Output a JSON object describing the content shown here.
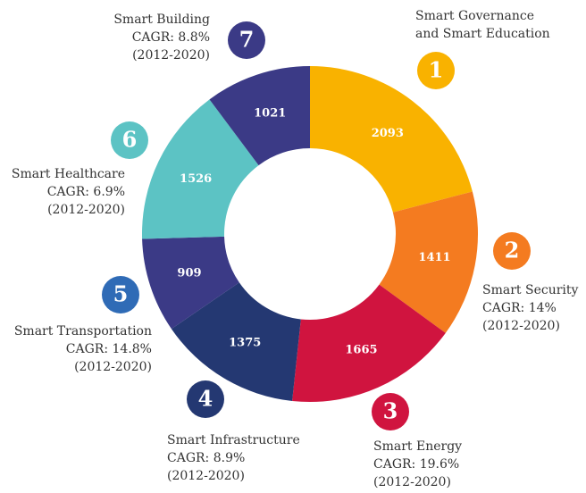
{
  "chart_data": {
    "type": "donut",
    "values": [
      2093,
      1411,
      1665,
      1375,
      909,
      1526,
      1021
    ],
    "colors": [
      "#f9b200",
      "#f47b20",
      "#d0143f",
      "#243872",
      "#3b3a86",
      "#5cc3c4",
      "#3b3a86"
    ],
    "badge_colors": [
      "#f9b200",
      "#f47b20",
      "#d0143f",
      "#243872",
      "#2f6bb6",
      "#5cc3c4",
      "#3b3a86"
    ],
    "labels": [
      {
        "badge": 1,
        "lines": [
          "Smart Governance",
          "and Smart Education"
        ]
      },
      {
        "badge": 2,
        "lines": [
          "Smart Security",
          "CAGR: 14%",
          "(2012-2020)"
        ]
      },
      {
        "badge": 3,
        "lines": [
          "Smart Energy",
          "CAGR: 19.6%",
          "(2012-2020)"
        ]
      },
      {
        "badge": 4,
        "lines": [
          "Smart Infrastructure",
          "CAGR: 8.9%",
          "(2012-2020)"
        ]
      },
      {
        "badge": 5,
        "lines": [
          "Smart Transportation",
          "CAGR: 14.8%",
          "(2012-2020)"
        ]
      },
      {
        "badge": 6,
        "lines": [
          "Smart Healthcare",
          "CAGR: 6.9%",
          "(2012-2020)"
        ]
      },
      {
        "badge": 7,
        "lines": [
          "Smart Building",
          "CAGR: 8.8%",
          "(2012-2020)"
        ]
      }
    ]
  }
}
